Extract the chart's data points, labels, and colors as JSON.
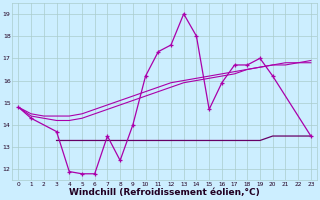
{
  "background_color": "#cceeff",
  "grid_color": "#aacccc",
  "line_color_main": "#aa00aa",
  "line_color_dark": "#660066",
  "xlabel": "Windchill (Refroidissement éolien,°C)",
  "xlabel_fontsize": 6.5,
  "ylabel_ticks": [
    12,
    13,
    14,
    15,
    16,
    17,
    18,
    19
  ],
  "xlim": [
    -0.5,
    23.5
  ],
  "ylim": [
    11.5,
    19.5
  ],
  "xtick_labels": [
    "0",
    "1",
    "2",
    "3",
    "4",
    "5",
    "6",
    "7",
    "8",
    "9",
    "10",
    "11",
    "12",
    "13",
    "14",
    "15",
    "16",
    "17",
    "18",
    "19",
    "20",
    "21",
    "22",
    "23"
  ],
  "series1_x": [
    0,
    1,
    3,
    4,
    5,
    6,
    7,
    8,
    9,
    10,
    11,
    12,
    13,
    14,
    15,
    16,
    17,
    18,
    19,
    20,
    23
  ],
  "series1_y": [
    14.8,
    14.3,
    13.7,
    11.9,
    11.8,
    11.8,
    13.5,
    12.4,
    14.0,
    16.2,
    17.3,
    17.6,
    19.0,
    18.0,
    14.7,
    15.9,
    16.7,
    16.7,
    17.0,
    16.2,
    13.5
  ],
  "series2_x": [
    3,
    4,
    5,
    6,
    7,
    8,
    9,
    10,
    11,
    12,
    13,
    14,
    15,
    16,
    17,
    18,
    19,
    20,
    21,
    22,
    23
  ],
  "series2_y": [
    13.3,
    13.3,
    13.3,
    13.3,
    13.3,
    13.3,
    13.3,
    13.3,
    13.3,
    13.3,
    13.3,
    13.3,
    13.3,
    13.3,
    13.3,
    13.3,
    13.3,
    13.5,
    13.5,
    13.5,
    13.5
  ],
  "series3_x": [
    0,
    1,
    2,
    3,
    4,
    5,
    6,
    7,
    8,
    9,
    10,
    11,
    12,
    13,
    14,
    15,
    16,
    17,
    18,
    19,
    20,
    21,
    22,
    23
  ],
  "series3_y": [
    14.8,
    14.4,
    14.3,
    14.2,
    14.2,
    14.3,
    14.5,
    14.7,
    14.9,
    15.1,
    15.3,
    15.5,
    15.7,
    15.9,
    16.0,
    16.1,
    16.2,
    16.3,
    16.5,
    16.6,
    16.7,
    16.8,
    16.8,
    16.8
  ],
  "series4_x": [
    0,
    1,
    2,
    3,
    4,
    5,
    6,
    7,
    8,
    9,
    10,
    11,
    12,
    13,
    14,
    15,
    16,
    17,
    18,
    19,
    20,
    21,
    22,
    23
  ],
  "series4_y": [
    14.8,
    14.5,
    14.4,
    14.4,
    14.4,
    14.5,
    14.7,
    14.9,
    15.1,
    15.3,
    15.5,
    15.7,
    15.9,
    16.0,
    16.1,
    16.2,
    16.3,
    16.4,
    16.5,
    16.6,
    16.7,
    16.7,
    16.8,
    16.9
  ]
}
